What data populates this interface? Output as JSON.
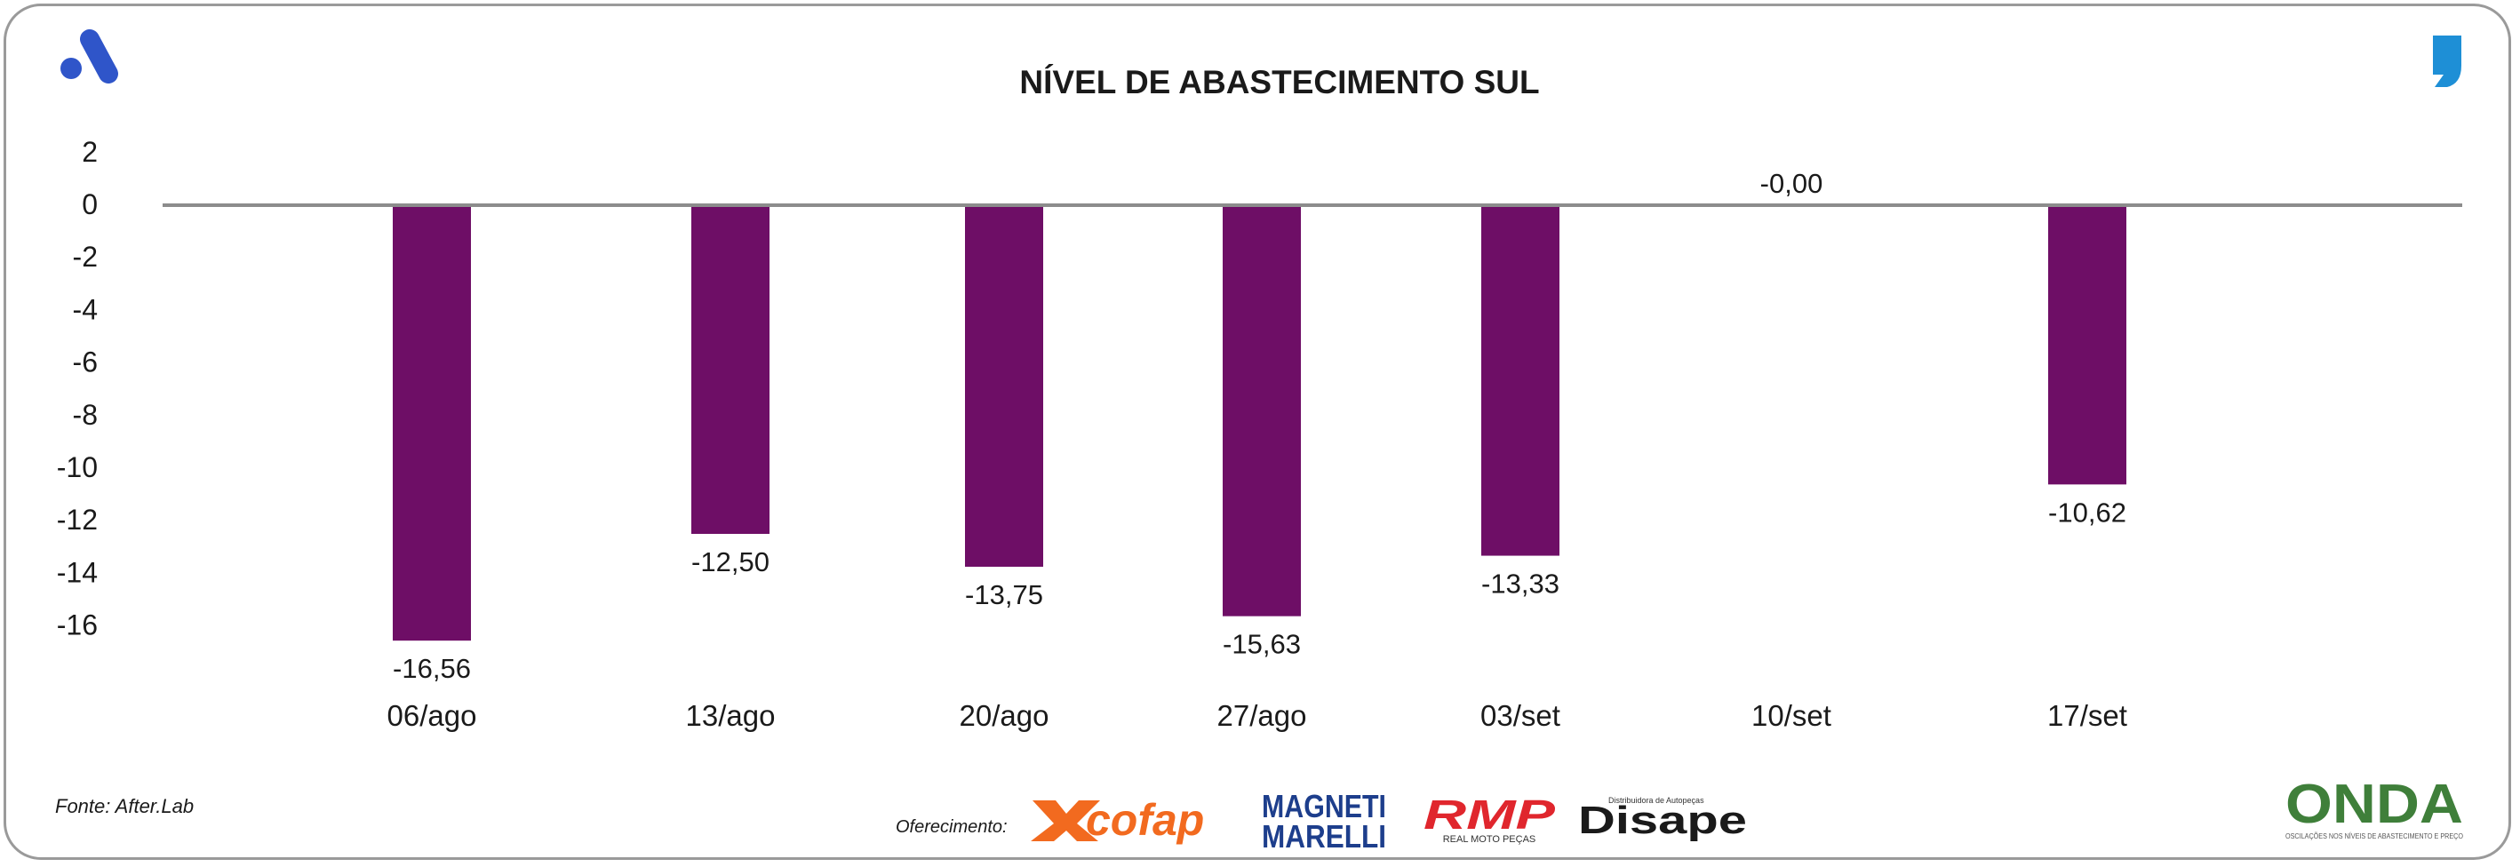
{
  "chart_data": {
    "type": "bar",
    "title": "NÍVEL DE ABASTECIMENTO SUL",
    "categories": [
      "06/ago",
      "13/ago",
      "20/ago",
      "27/ago",
      "03/set",
      "10/set",
      "17/set"
    ],
    "values": [
      -16.56,
      -12.5,
      -13.75,
      -15.63,
      -13.33,
      -0.0,
      -10.62
    ],
    "data_labels": [
      "-16,56",
      "-12,50",
      "-13,75",
      "-15,63",
      "-13,33",
      "-0,00",
      "-10,62"
    ],
    "y_ticks": [
      2,
      0,
      -2,
      -4,
      -6,
      -8,
      -10,
      -12,
      -14,
      -16
    ],
    "ylim": [
      -16,
      2
    ],
    "xlabel": "",
    "ylabel": "",
    "grid": false,
    "bar_color": "#6e0e66"
  },
  "footer": {
    "source": "Fonte: After.Lab",
    "sponsor_label": "Oferecimento:",
    "sponsors": [
      "cofap",
      "MAGNETI",
      "MARELLI",
      "RMP",
      "REAL MOTO PEÇAS",
      "Disape",
      "Distribuidora de Autopeças"
    ],
    "onda": "ONDA",
    "onda_tagline": "OSCILAÇÕES NOS NÍVEIS DE ABASTECIMENTO E PREÇO"
  },
  "colors": {
    "brand_blue": "#2f55c9",
    "quote_blue": "#1e8fd6",
    "cofap": "#f26a1f",
    "marelli": "#1d3e8c",
    "rmp": "#e0262d"
  }
}
